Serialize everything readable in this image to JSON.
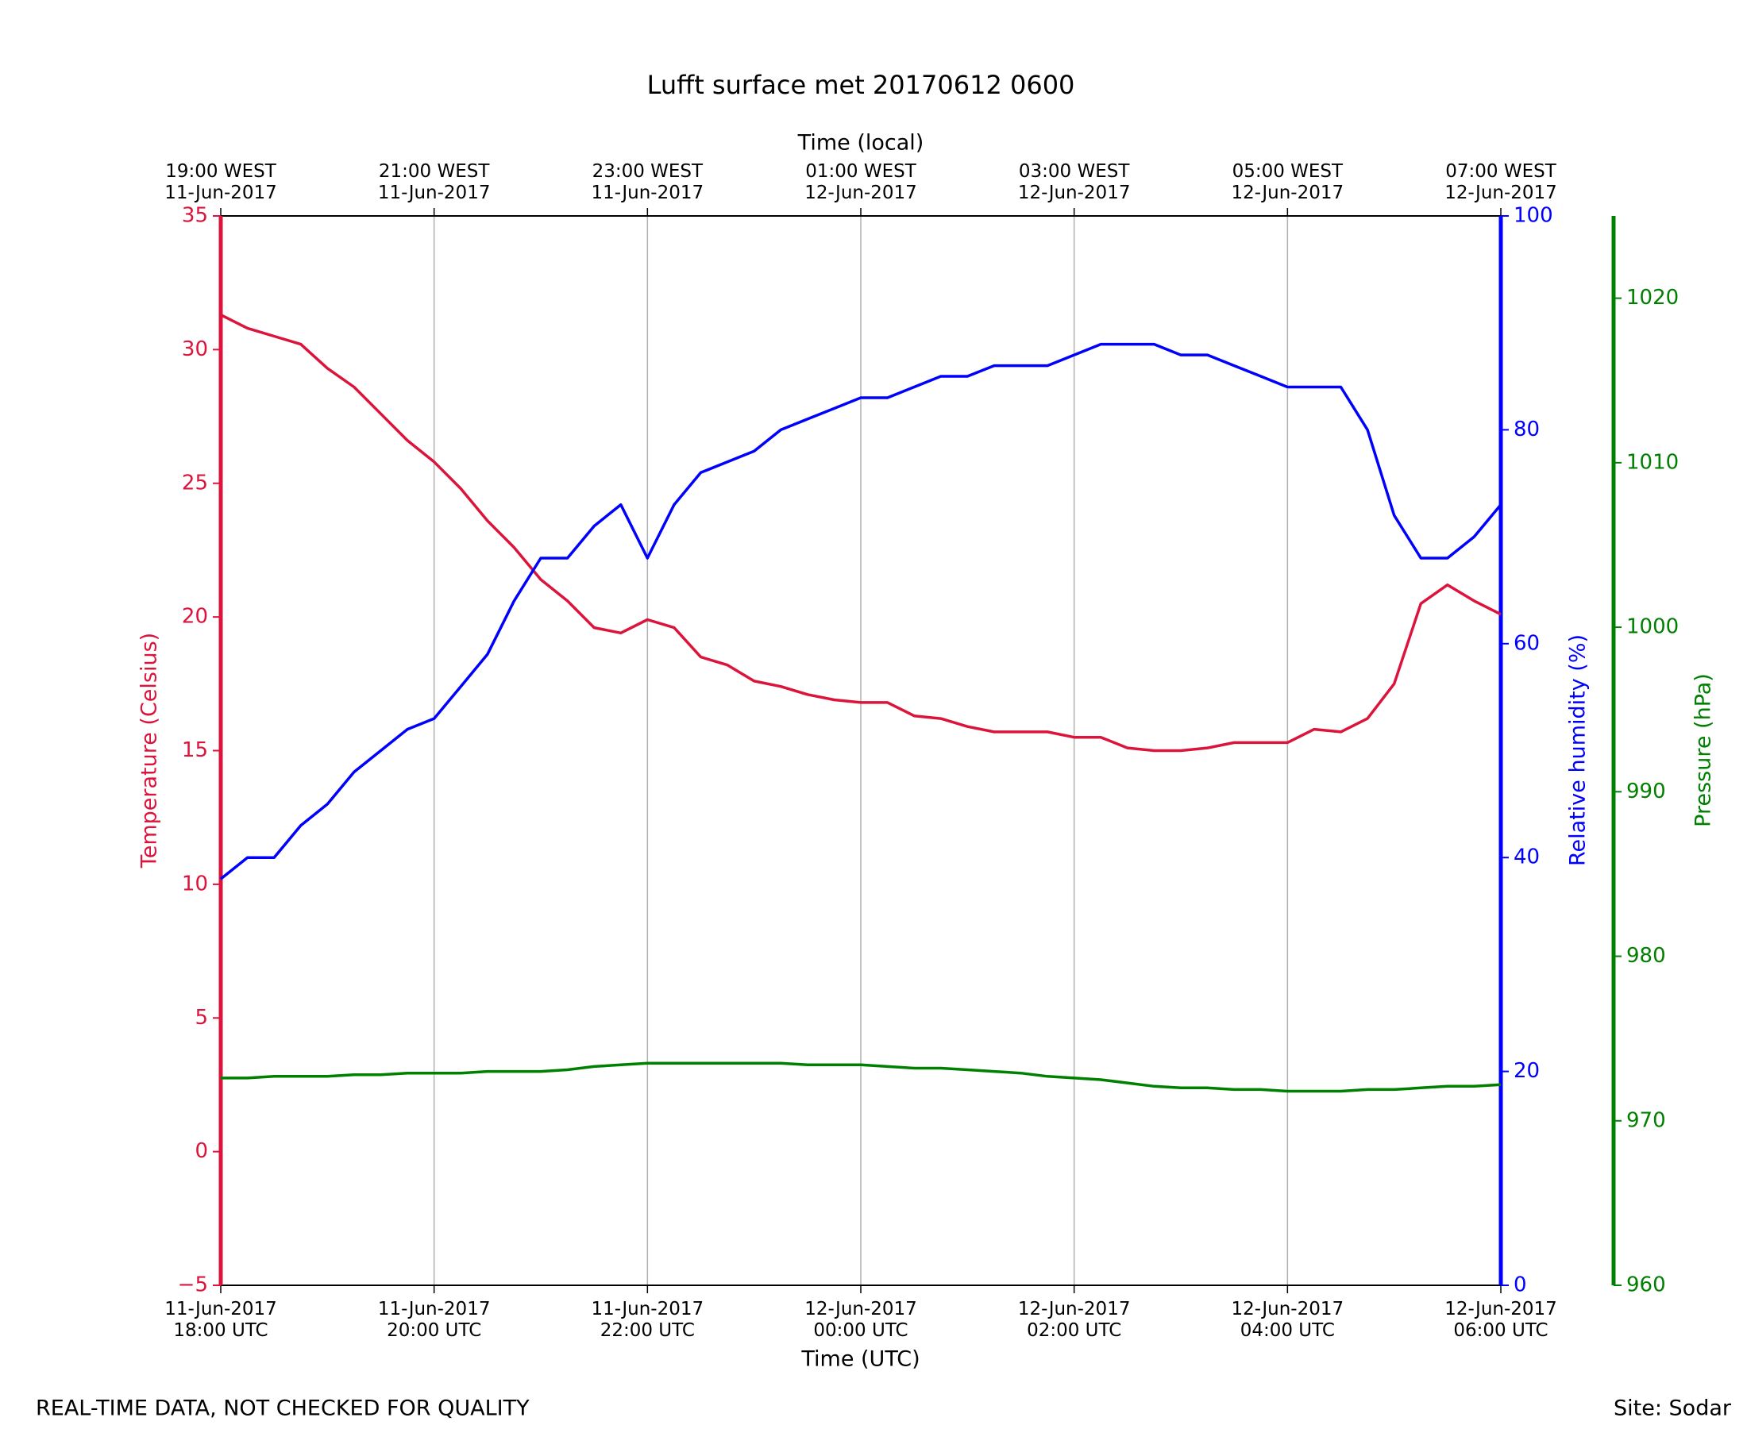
{
  "chart_data": {
    "type": "line",
    "title": "Lufft surface met 20170612 0600",
    "xlabel": "Time (UTC)",
    "x2label": "Time (local)",
    "ylabel": "Temperature (Celsius)",
    "y2label": "Relative humidity (%)",
    "y3label": "Pressure (hPa)",
    "footer_left": "REAL-TIME DATA, NOT CHECKED FOR QUALITY",
    "footer_right": "Site: Sodar",
    "grid": "x",
    "xlim": [
      "2017-06-11T18:00",
      "2017-06-12T06:00"
    ],
    "xticks": [
      {
        "value": "2017-06-11T18:00",
        "label": [
          "11-Jun-2017",
          "18:00 UTC"
        ]
      },
      {
        "value": "2017-06-11T20:00",
        "label": [
          "11-Jun-2017",
          "20:00 UTC"
        ]
      },
      {
        "value": "2017-06-11T22:00",
        "label": [
          "11-Jun-2017",
          "22:00 UTC"
        ]
      },
      {
        "value": "2017-06-12T00:00",
        "label": [
          "12-Jun-2017",
          "00:00 UTC"
        ]
      },
      {
        "value": "2017-06-12T02:00",
        "label": [
          "12-Jun-2017",
          "02:00 UTC"
        ]
      },
      {
        "value": "2017-06-12T04:00",
        "label": [
          "12-Jun-2017",
          "04:00 UTC"
        ]
      },
      {
        "value": "2017-06-12T06:00",
        "label": [
          "12-Jun-2017",
          "06:00 UTC"
        ]
      }
    ],
    "x2ticks": [
      {
        "value": "2017-06-11T18:00",
        "label": [
          "19:00 WEST",
          "11-Jun-2017"
        ]
      },
      {
        "value": "2017-06-11T20:00",
        "label": [
          "21:00 WEST",
          "11-Jun-2017"
        ]
      },
      {
        "value": "2017-06-11T22:00",
        "label": [
          "23:00 WEST",
          "11-Jun-2017"
        ]
      },
      {
        "value": "2017-06-12T00:00",
        "label": [
          "01:00 WEST",
          "12-Jun-2017"
        ]
      },
      {
        "value": "2017-06-12T02:00",
        "label": [
          "03:00 WEST",
          "12-Jun-2017"
        ]
      },
      {
        "value": "2017-06-12T04:00",
        "label": [
          "05:00 WEST",
          "12-Jun-2017"
        ]
      },
      {
        "value": "2017-06-12T06:00",
        "label": [
          "07:00 WEST",
          "12-Jun-2017"
        ]
      }
    ],
    "ylim": [
      -5,
      35
    ],
    "yticks": [
      {
        "value": -5,
        "label": "−5"
      },
      0,
      5,
      10,
      15,
      20,
      25,
      30,
      35
    ],
    "y2lim": [
      0,
      100
    ],
    "y2ticks": [
      0,
      20,
      40,
      60,
      80,
      100
    ],
    "y3lim": [
      960,
      1025
    ],
    "y3ticks": [
      960,
      970,
      980,
      990,
      1000,
      1010,
      1020
    ],
    "x": [
      "2017-06-11T18:00",
      "2017-06-11T18:15",
      "2017-06-11T18:30",
      "2017-06-11T18:45",
      "2017-06-11T19:00",
      "2017-06-11T19:15",
      "2017-06-11T19:30",
      "2017-06-11T19:45",
      "2017-06-11T20:00",
      "2017-06-11T20:15",
      "2017-06-11T20:30",
      "2017-06-11T20:45",
      "2017-06-11T21:00",
      "2017-06-11T21:15",
      "2017-06-11T21:30",
      "2017-06-11T21:45",
      "2017-06-11T22:00",
      "2017-06-11T22:15",
      "2017-06-11T22:30",
      "2017-06-11T22:45",
      "2017-06-11T23:00",
      "2017-06-11T23:15",
      "2017-06-11T23:30",
      "2017-06-11T23:45",
      "2017-06-12T00:00",
      "2017-06-12T00:15",
      "2017-06-12T00:30",
      "2017-06-12T00:45",
      "2017-06-12T01:00",
      "2017-06-12T01:15",
      "2017-06-12T01:30",
      "2017-06-12T01:45",
      "2017-06-12T02:00",
      "2017-06-12T02:15",
      "2017-06-12T02:30",
      "2017-06-12T02:45",
      "2017-06-12T03:00",
      "2017-06-12T03:15",
      "2017-06-12T03:30",
      "2017-06-12T03:45",
      "2017-06-12T04:00",
      "2017-06-12T04:15",
      "2017-06-12T04:30",
      "2017-06-12T04:45",
      "2017-06-12T05:00",
      "2017-06-12T05:15",
      "2017-06-12T05:30",
      "2017-06-12T05:45",
      "2017-06-12T06:00"
    ],
    "series": [
      {
        "name": "Temperature",
        "color": "#dc143c",
        "axis": "y",
        "values": [
          31.3,
          30.8,
          30.5,
          30.2,
          29.3,
          28.6,
          27.6,
          26.6,
          25.8,
          24.8,
          23.6,
          22.6,
          21.4,
          20.6,
          19.6,
          19.4,
          19.9,
          19.6,
          18.5,
          18.2,
          17.6,
          17.4,
          17.1,
          16.9,
          16.8,
          16.8,
          16.3,
          16.2,
          15.9,
          15.7,
          15.7,
          15.7,
          15.5,
          15.5,
          15.1,
          15.0,
          15.0,
          15.1,
          15.3,
          15.3,
          15.3,
          15.8,
          15.7,
          16.2,
          17.5,
          20.5,
          21.2,
          20.6,
          20.1
        ]
      },
      {
        "name": "Relative humidity",
        "color": "#0000ff",
        "axis": "y2",
        "values": [
          38,
          40,
          40,
          43,
          45,
          48,
          50,
          52,
          53,
          56,
          59,
          64,
          68,
          68,
          71,
          73,
          68,
          73,
          76,
          77,
          78,
          80,
          81,
          82,
          83,
          83,
          84,
          85,
          85,
          86,
          86,
          86,
          87,
          88,
          88,
          88,
          87,
          87,
          86,
          85,
          84,
          84,
          84,
          80,
          72,
          68,
          68,
          70,
          73
        ]
      },
      {
        "name": "Pressure",
        "color": "#008000",
        "axis": "y3",
        "values": [
          972.6,
          972.6,
          972.7,
          972.7,
          972.7,
          972.8,
          972.8,
          972.9,
          972.9,
          972.9,
          973.0,
          973.0,
          973.0,
          973.1,
          973.3,
          973.4,
          973.5,
          973.5,
          973.5,
          973.5,
          973.5,
          973.5,
          973.4,
          973.4,
          973.4,
          973.3,
          973.2,
          973.2,
          973.1,
          973.0,
          972.9,
          972.7,
          972.6,
          972.5,
          972.3,
          972.1,
          972.0,
          972.0,
          971.9,
          971.9,
          971.8,
          971.8,
          971.8,
          971.9,
          971.9,
          972.0,
          972.1,
          972.1,
          972.2
        ]
      }
    ]
  }
}
